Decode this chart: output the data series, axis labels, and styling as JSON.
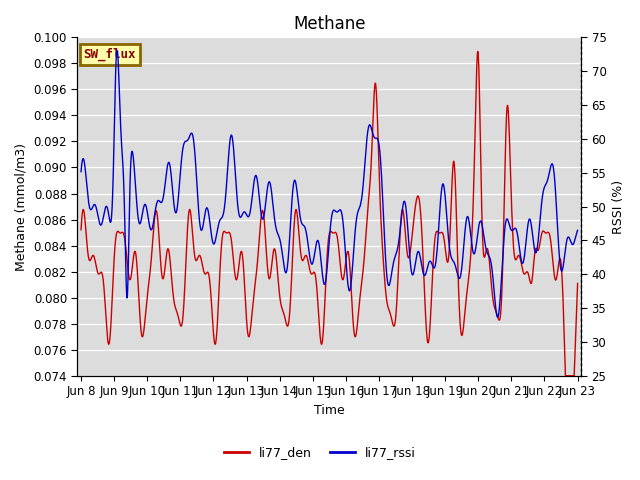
{
  "title": "Methane",
  "ylabel_left": "Methane (mmol/m3)",
  "ylabel_right": "RSSI (%)",
  "xlabel": "Time",
  "ylim_left": [
    0.074,
    0.1
  ],
  "ylim_right": [
    25,
    75
  ],
  "yticks_left": [
    0.074,
    0.076,
    0.078,
    0.08,
    0.082,
    0.084,
    0.086,
    0.088,
    0.09,
    0.092,
    0.094,
    0.096,
    0.098,
    0.1
  ],
  "yticks_right": [
    25,
    30,
    35,
    40,
    45,
    50,
    55,
    60,
    65,
    70,
    75
  ],
  "xtick_labels": [
    "Jun 8",
    "Jun 9",
    "Jun 10",
    "Jun 11",
    "Jun 12",
    "Jun 13",
    "Jun 14",
    "Jun 15",
    "Jun 16",
    "Jun 17",
    "Jun 18",
    "Jun 19",
    "Jun 20",
    "Jun 21",
    "Jun 22",
    "Jun 23"
  ],
  "color_red": "#cc0000",
  "color_blue": "#0000cc",
  "label_den": "li77_den",
  "label_rssi": "li77_rssi",
  "annotation_text": "SW_flux",
  "annotation_bg": "#ffffaa",
  "annotation_border": "#886600",
  "background_color": "#dcdcdc",
  "title_fontsize": 12,
  "axis_label_fontsize": 9,
  "tick_fontsize": 8.5,
  "line_width": 1.0
}
